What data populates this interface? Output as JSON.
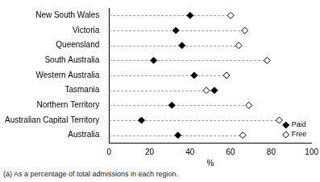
{
  "chart_data": {
    "type": "dot",
    "categories": [
      "New South Wales",
      "Victoria",
      "Queensland",
      "South Australia",
      "Western Australia",
      "Tasmania",
      "Northern Territory",
      "Australian Capital Territory",
      "Australia"
    ],
    "series": [
      {
        "name": "Paid",
        "color": "#000000",
        "marker": "filled_diamond",
        "values": [
          40,
          33,
          36,
          22,
          42,
          52,
          31,
          16,
          34
        ]
      },
      {
        "name": "Free",
        "color": "#000000",
        "marker": "open_diamond",
        "values": [
          60,
          67,
          64,
          78,
          58,
          48,
          69,
          84,
          66
        ]
      }
    ],
    "x_label": "%",
    "xlim": [
      0,
      100
    ],
    "xticks": [
      0,
      20,
      40,
      60,
      80,
      100
    ],
    "grid": false,
    "legend": "lower right",
    "footnote": "(a) As a percentage of total admissions in each region."
  }
}
